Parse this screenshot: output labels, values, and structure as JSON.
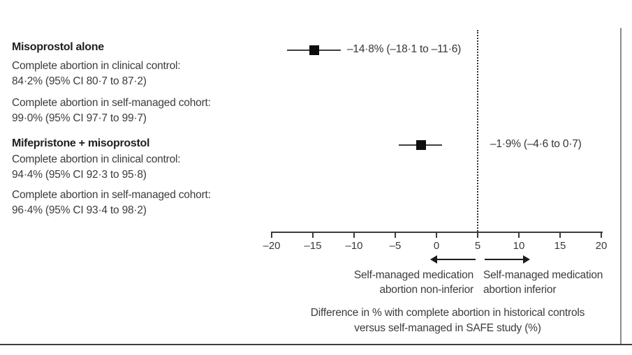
{
  "figure": {
    "groups": [
      {
        "title": "Misoprostol alone",
        "rows": [
          {
            "label": "Complete abortion in clinical control:",
            "value": "84·2% (95% CI 80·7 to 87·2)"
          },
          {
            "label": "Complete abortion in self-managed cohort:",
            "value": "99·0% (95% CI 97·7 to 99·7)"
          }
        ]
      },
      {
        "title": "Mifepristone + misoprostol",
        "rows": [
          {
            "label": "Complete abortion in clinical control:",
            "value": "94·4% (95% CI 92·3 to 95·8)"
          },
          {
            "label": "Complete abortion in self-managed cohort:",
            "value": "96·4% (95% CI 93·4 to 98·2)"
          }
        ]
      }
    ]
  },
  "chart_data": {
    "type": "scatter",
    "subtype": "forest-plot",
    "series": [
      {
        "group": "Misoprostol alone",
        "estimate": -14.8,
        "ci_low": -18.1,
        "ci_high": -11.6,
        "label": "–14·8% (–18·1 to –11·6)"
      },
      {
        "group": "Mifepristone + misoprostol",
        "estimate": -1.9,
        "ci_low": -4.6,
        "ci_high": 0.7,
        "label": "–1·9% (–4·6 to 0·7)"
      }
    ],
    "axis": {
      "min": -20,
      "max": 20,
      "ticks": [
        -20,
        -15,
        -10,
        -5,
        0,
        5,
        10,
        15,
        20
      ],
      "tick_labels": [
        "–20",
        "–15",
        "–10",
        "–5",
        "0",
        "5",
        "10",
        "15",
        "20"
      ],
      "reference_line": 5
    },
    "xlabel": "Difference in % with complete abortion in historical controls versus self-managed in SAFE study (%)",
    "xlabel_line1": "Difference in % with complete abortion in historical controls",
    "xlabel_line2": "versus self-managed in SAFE study (%)",
    "direction_labels": {
      "left_line1": "Self-managed medication",
      "left_line2": "abortion non-inferior",
      "right_line1": "Self-managed medication",
      "right_line2": "abortion inferior"
    },
    "colors": {
      "marker": "#0e0e0e",
      "line": "#404040",
      "text": "#3c3c3c"
    },
    "grid": false,
    "legend": false
  }
}
